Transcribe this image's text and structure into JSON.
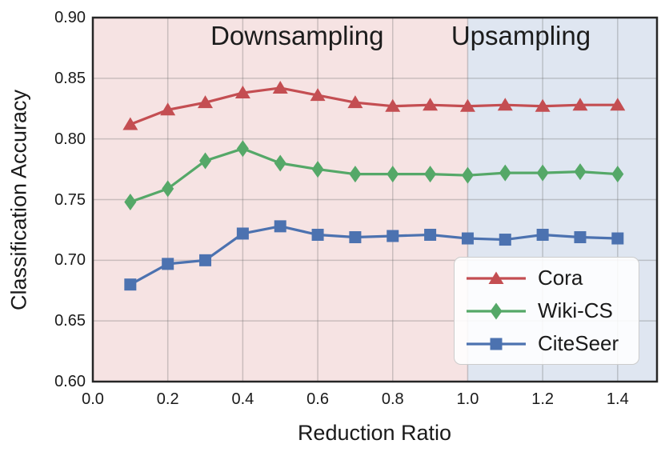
{
  "styles": {
    "grid_color": "rgba(110,110,110,0.32)",
    "frame_color": "#262626",
    "text_color": "#1a1a1a",
    "legend_border": "#cccccc"
  },
  "chart_data": {
    "type": "line",
    "title": "",
    "xlabel": "Reduction Ratio",
    "ylabel": "Classification Accuracy",
    "x": [
      0.1,
      0.2,
      0.3,
      0.4,
      0.5,
      0.6,
      0.7,
      0.8,
      0.9,
      1.0,
      1.1,
      1.2,
      1.3,
      1.4
    ],
    "series": [
      {
        "name": "Cora",
        "color": "#c44e52",
        "marker": "triangle",
        "values": [
          0.812,
          0.824,
          0.83,
          0.838,
          0.842,
          0.836,
          0.83,
          0.827,
          0.828,
          0.827,
          0.828,
          0.827,
          0.828,
          0.828
        ]
      },
      {
        "name": "Wiki-CS",
        "color": "#55a868",
        "marker": "diamond",
        "values": [
          0.748,
          0.759,
          0.782,
          0.792,
          0.78,
          0.775,
          0.771,
          0.771,
          0.771,
          0.77,
          0.772,
          0.772,
          0.773,
          0.771
        ]
      },
      {
        "name": "CiteSeer",
        "color": "#4c72b0",
        "marker": "square",
        "values": [
          0.68,
          0.697,
          0.7,
          0.722,
          0.728,
          0.721,
          0.719,
          0.72,
          0.721,
          0.718,
          0.717,
          0.721,
          0.719,
          0.718
        ]
      }
    ],
    "xlim": [
      0.0,
      1.505
    ],
    "ylim": [
      0.6,
      0.9
    ],
    "xticks": {
      "values": [
        0.0,
        0.2,
        0.4,
        0.6,
        0.8,
        1.0,
        1.2,
        1.4
      ],
      "labels": [
        "0.0",
        "0.2",
        "0.4",
        "0.6",
        "0.8",
        "1.0",
        "1.2",
        "1.4"
      ]
    },
    "yticks": {
      "values": [
        0.6,
        0.65,
        0.7,
        0.75,
        0.8,
        0.85,
        0.9
      ],
      "labels": [
        "0.60",
        "0.65",
        "0.70",
        "0.75",
        "0.80",
        "0.85",
        "0.90"
      ]
    },
    "regions": [
      {
        "label": "Downsampling",
        "from": 0.0,
        "to": 1.0,
        "fill": "rgba(196,78,82,0.16)",
        "label_x": 0.545
      },
      {
        "label": "Upsampling",
        "from": 1.0,
        "to": 1.505,
        "fill": "rgba(76,114,176,0.18)",
        "label_x": 1.142
      }
    ],
    "grid": true,
    "legend_position": "lower right"
  }
}
